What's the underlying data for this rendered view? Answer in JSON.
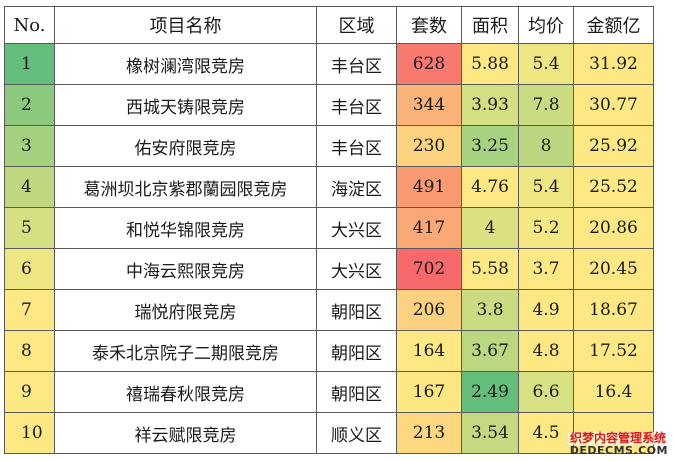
{
  "table": {
    "headers": [
      "No.",
      "项目名称",
      "区域",
      "套数",
      "面积",
      "均价",
      "金额亿"
    ],
    "rows": [
      {
        "no": "1",
        "name": "橡树澜湾限竞房",
        "district": "丰台区",
        "sets": "628",
        "area": "5.88",
        "price": "5.4",
        "total": "31.92"
      },
      {
        "no": "2",
        "name": "西城天铸限竞房",
        "district": "丰台区",
        "sets": "344",
        "area": "3.93",
        "price": "7.8",
        "total": "30.77"
      },
      {
        "no": "3",
        "name": "佑安府限竞房",
        "district": "丰台区",
        "sets": "230",
        "area": "3.25",
        "price": "8",
        "total": "25.92"
      },
      {
        "no": "4",
        "name": "葛洲坝北京紫郡蘭园限竞房",
        "district": "海淀区",
        "sets": "491",
        "area": "4.76",
        "price": "5.4",
        "total": "25.52"
      },
      {
        "no": "5",
        "name": "和悦华锦限竞房",
        "district": "大兴区",
        "sets": "417",
        "area": "4",
        "price": "5.2",
        "total": "20.86"
      },
      {
        "no": "6",
        "name": "中海云熙限竞房",
        "district": "大兴区",
        "sets": "702",
        "area": "5.58",
        "price": "3.7",
        "total": "20.45"
      },
      {
        "no": "7",
        "name": "瑞悦府限竞房",
        "district": "朝阳区",
        "sets": "206",
        "area": "3.8",
        "price": "4.9",
        "total": "18.67"
      },
      {
        "no": "8",
        "name": "泰禾北京院子二期限竞房",
        "district": "朝阳区",
        "sets": "164",
        "area": "3.67",
        "price": "4.8",
        "total": "17.52"
      },
      {
        "no": "9",
        "name": "禧瑞春秋限竞房",
        "district": "朝阳区",
        "sets": "167",
        "area": "2.49",
        "price": "6.6",
        "total": "16.4"
      },
      {
        "no": "10",
        "name": "祥云赋限竞房",
        "district": "顺义区",
        "sets": "213",
        "area": "3.54",
        "price": "4.5",
        "total": ""
      }
    ],
    "colors": {
      "no": [
        "#63be7b",
        "#8bca7e",
        "#a5d17f",
        "#bfd880",
        "#d6df81",
        "#eee683",
        "#fee883",
        "#fee883",
        "#fee883",
        "#fee883"
      ],
      "sets": [
        "#f8796d",
        "#fbb379",
        "#fdd37f",
        "#f99a73",
        "#faa976",
        "#f8696b",
        "#fdd17f",
        "#fee883",
        "#fee683",
        "#fed880"
      ],
      "area": [
        "#fee883",
        "#d4df81",
        "#a7d27f",
        "#fee883",
        "#dce081",
        "#fee883",
        "#c9dc81",
        "#bbd780",
        "#63be7b",
        "#c3da80"
      ],
      "price": [
        "#eee683",
        "#c9dc81",
        "#bad77f",
        "#eee683",
        "#f5e883",
        "#fee883",
        "#fee883",
        "#fee883",
        "#d7e082",
        "#fee883"
      ],
      "total": [
        "#fee883",
        "#fee883",
        "#fee883",
        "#fee883",
        "#fee883",
        "#fee883",
        "#fee883",
        "#fee883",
        "#fee883",
        "#fee883"
      ]
    }
  },
  "watermark": {
    "line1": "织梦内容管理系统",
    "line2": "DEDECMS.COM"
  }
}
